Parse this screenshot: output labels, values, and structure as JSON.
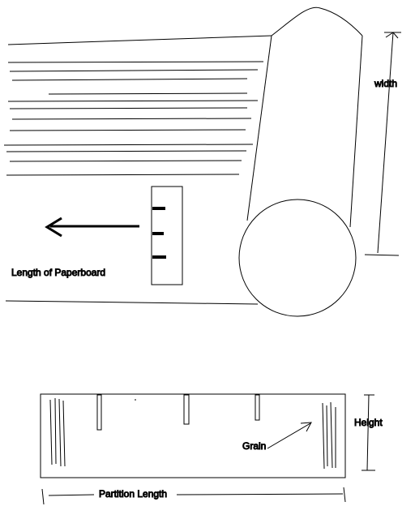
{
  "labels": {
    "width": "width",
    "length": "Length of Paperboard",
    "height": "Height",
    "grain": "Grain",
    "partition_length": "Partition Length"
  },
  "colors": {
    "background": "#ffffff",
    "stroke": "#000000"
  }
}
